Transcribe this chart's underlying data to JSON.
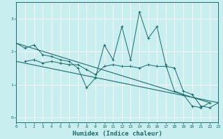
{
  "xlabel": "Humidex (Indice chaleur)",
  "xlim": [
    0,
    23
  ],
  "ylim": [
    -0.15,
    3.5
  ],
  "bg_color": "#c8eef0",
  "line_color": "#1a6b6b",
  "grid_color": "#ffffff",
  "xticks": [
    0,
    1,
    2,
    3,
    4,
    5,
    6,
    7,
    8,
    9,
    10,
    11,
    12,
    13,
    14,
    15,
    16,
    17,
    18,
    19,
    20,
    21,
    22,
    23
  ],
  "yticks": [
    0,
    1,
    2,
    3
  ],
  "series1_x": [
    0,
    1,
    2,
    3,
    4,
    5,
    6,
    7,
    8,
    9,
    10,
    11,
    12,
    13,
    14,
    15,
    16,
    17,
    18,
    19,
    20,
    21,
    22
  ],
  "series1_y": [
    2.25,
    2.1,
    2.2,
    1.9,
    1.85,
    1.75,
    1.7,
    1.5,
    0.9,
    1.2,
    2.2,
    1.75,
    2.75,
    1.75,
    3.2,
    2.4,
    2.75,
    1.6,
    0.8,
    0.7,
    0.35,
    0.3,
    0.45
  ],
  "series2_x": [
    1,
    2,
    3,
    4,
    5,
    6,
    7,
    8,
    9,
    10,
    11,
    12,
    13,
    14,
    15,
    16,
    17,
    18,
    19,
    20,
    21,
    22,
    23
  ],
  "series2_y": [
    1.7,
    1.75,
    1.65,
    1.7,
    1.65,
    1.6,
    1.6,
    1.45,
    1.3,
    1.55,
    1.6,
    1.55,
    1.55,
    1.5,
    1.6,
    1.55,
    1.55,
    1.5,
    0.8,
    0.7,
    0.35,
    0.3,
    0.45
  ],
  "series3_x": [
    0,
    22
  ],
  "series3_y": [
    2.25,
    0.45
  ],
  "series4_x": [
    0,
    23
  ],
  "series4_y": [
    1.7,
    0.45
  ]
}
